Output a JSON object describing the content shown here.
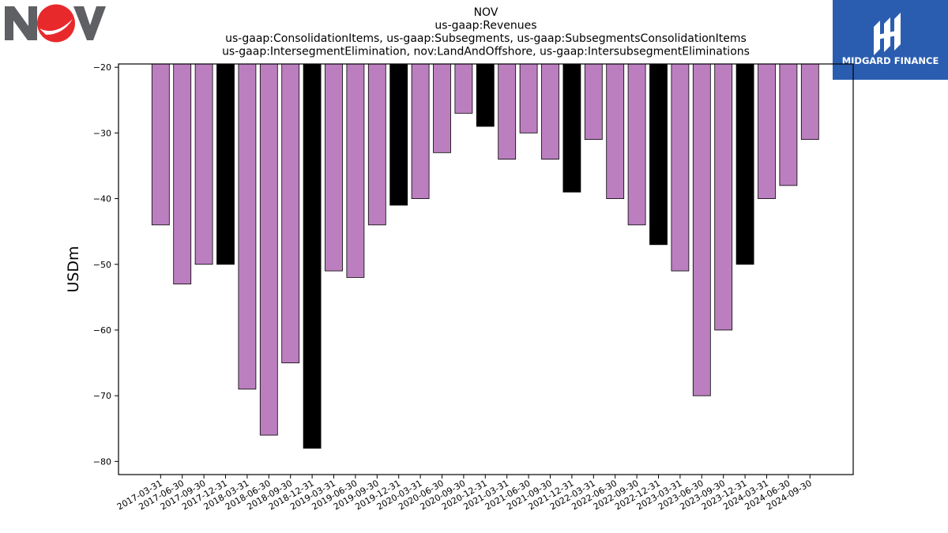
{
  "company_logo": {
    "name": "NOV",
    "colors": {
      "letters": "#5f6063",
      "circle": "#e8292b"
    }
  },
  "brand_logo": {
    "text": "MIDGARD FINANCE",
    "background": "#2a5db0"
  },
  "chart_data": {
    "type": "bar",
    "title_lines": [
      "NOV",
      "us-gaap:Revenues",
      "us-gaap:ConsolidationItems, us-gaap:Subsegments, us-gaap:SubsegmentsConsolidationItems",
      "us-gaap:IntersegmentElimination, nov:LandAndOffshore, us-gaap:IntersubsegmentEliminations"
    ],
    "xlabel": "",
    "ylabel": "USDm",
    "ylim": [
      -82,
      -19.5
    ],
    "yticks": [
      -20,
      -30,
      -40,
      -50,
      -60,
      -70,
      -80
    ],
    "ytick_labels": [
      "−20",
      "−30",
      "−40",
      "−50",
      "−60",
      "−70",
      "−80"
    ],
    "colors": {
      "quarter": "#bb7fbf",
      "year_end": "#000000"
    },
    "categories": [
      "2017-03-31",
      "2017-06-30",
      "2017-09-30",
      "2017-12-31",
      "2018-03-31",
      "2018-06-30",
      "2018-09-30",
      "2018-12-31",
      "2019-03-31",
      "2019-06-30",
      "2019-09-30",
      "2019-12-31",
      "2020-03-31",
      "2020-06-30",
      "2020-09-30",
      "2020-12-31",
      "2021-03-31",
      "2021-06-30",
      "2021-09-30",
      "2021-12-31",
      "2022-03-31",
      "2022-06-30",
      "2022-09-30",
      "2022-12-31",
      "2023-03-31",
      "2023-06-30",
      "2023-09-30",
      "2023-12-31",
      "2024-03-31",
      "2024-06-30",
      "2024-09-30"
    ],
    "values": [
      -44,
      -53,
      -50,
      -50,
      -69,
      -76,
      -65,
      -78,
      -51,
      -52,
      -44,
      -41,
      -40,
      -33,
      -27,
      -29,
      -34,
      -30,
      -34,
      -39,
      -31,
      -40,
      -44,
      -47,
      -51,
      -70,
      -60,
      -50,
      -40,
      -38,
      -31
    ]
  }
}
